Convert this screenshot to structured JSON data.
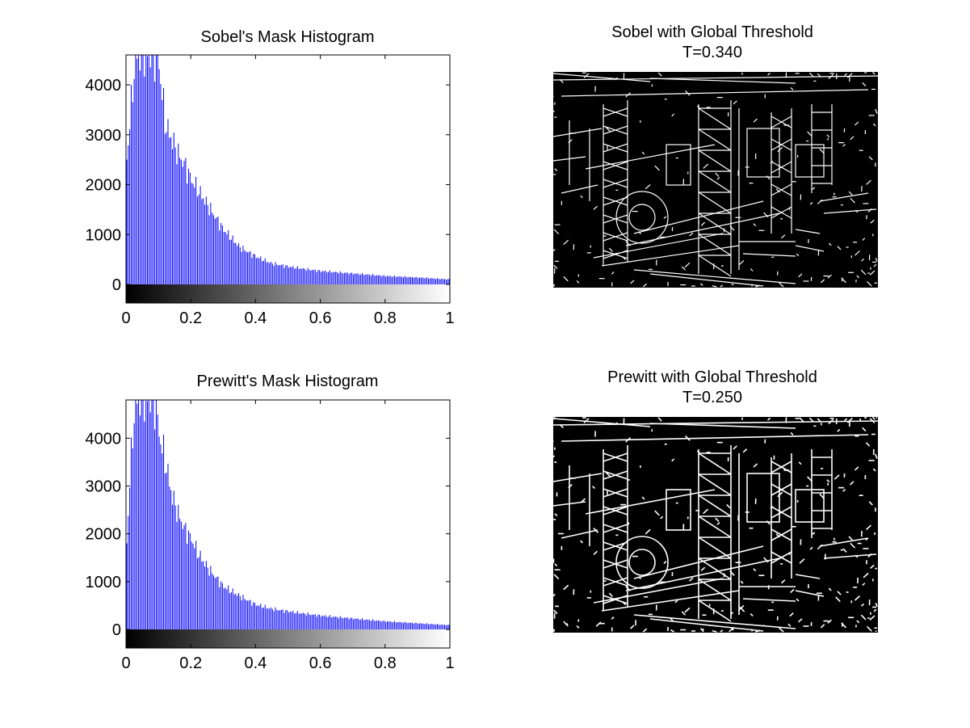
{
  "colors": {
    "bar": "#0000ff",
    "axis": "#000000",
    "background": "#ffffff",
    "edge": "#ffffff",
    "image_bg": "#000000"
  },
  "chart_data": [
    {
      "type": "bar",
      "title": "Sobel's Mask Histogram",
      "xlim": [
        0,
        1
      ],
      "ylim": [
        0,
        4600
      ],
      "xticks": [
        "0",
        "0.2",
        "0.4",
        "0.6",
        "0.8",
        "1"
      ],
      "yticks": [
        "0",
        "1000",
        "2000",
        "3000",
        "4000"
      ],
      "grayscale_colorbar": true,
      "x": [
        0.0,
        0.01,
        0.02,
        0.03,
        0.04,
        0.05,
        0.06,
        0.07,
        0.08,
        0.09,
        0.1,
        0.12,
        0.14,
        0.16,
        0.18,
        0.2,
        0.22,
        0.25,
        0.3,
        0.35,
        0.4,
        0.45,
        0.5,
        0.55,
        0.6,
        0.7,
        0.8,
        0.9,
        1.0
      ],
      "values": [
        2500,
        3300,
        4100,
        4600,
        4600,
        4600,
        4600,
        4600,
        4600,
        4600,
        4400,
        3200,
        2900,
        2600,
        2400,
        2100,
        1900,
        1600,
        1100,
        750,
        560,
        420,
        360,
        310,
        270,
        220,
        170,
        140,
        100
      ]
    },
    {
      "type": "image",
      "title": "Sobel with Global Threshold",
      "subtitle": "T=0.340"
    },
    {
      "type": "bar",
      "title": "Prewitt's Mask Histogram",
      "xlim": [
        0,
        1
      ],
      "ylim": [
        0,
        4800
      ],
      "xticks": [
        "0",
        "0.2",
        "0.4",
        "0.6",
        "0.8",
        "1"
      ],
      "yticks": [
        "0",
        "1000",
        "2000",
        "3000",
        "4000"
      ],
      "grayscale_colorbar": true,
      "x": [
        0.0,
        0.01,
        0.02,
        0.03,
        0.04,
        0.05,
        0.06,
        0.07,
        0.08,
        0.09,
        0.1,
        0.12,
        0.14,
        0.16,
        0.18,
        0.2,
        0.22,
        0.25,
        0.3,
        0.35,
        0.4,
        0.45,
        0.5,
        0.55,
        0.6,
        0.7,
        0.8,
        0.9,
        1.0
      ],
      "values": [
        1800,
        3200,
        4300,
        4800,
        4800,
        4800,
        4800,
        4800,
        4800,
        4700,
        4100,
        3500,
        2800,
        2400,
        2100,
        1900,
        1600,
        1300,
        900,
        700,
        520,
        430,
        380,
        330,
        290,
        230,
        170,
        130,
        90
      ]
    },
    {
      "type": "image",
      "title": "Prewitt with Global Threshold",
      "subtitle": "T=0.250"
    }
  ]
}
